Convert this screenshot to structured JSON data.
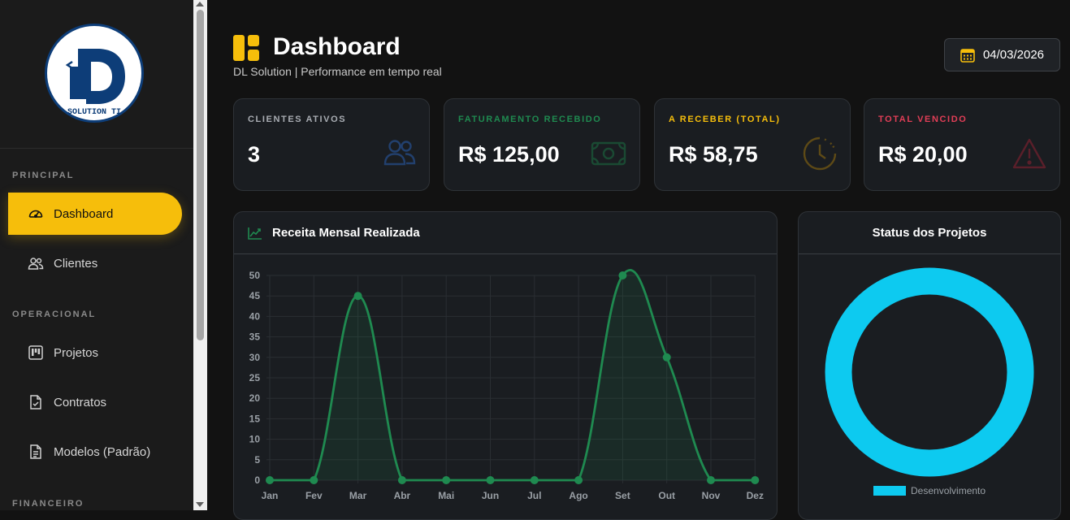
{
  "sidebar": {
    "sections": {
      "principal": "PRINCIPAL",
      "operacional": "OPERACIONAL",
      "financeiro": "FINANCEIRO"
    },
    "logo_text": "SOLUTION TI",
    "items": [
      {
        "label": "Dashboard",
        "icon": "speedometer-icon",
        "active": true
      },
      {
        "label": "Clientes",
        "icon": "users-icon"
      },
      {
        "label": "Projetos",
        "icon": "kanban-icon"
      },
      {
        "label": "Contratos",
        "icon": "file-check-icon"
      },
      {
        "label": "Modelos (Padrão)",
        "icon": "file-text-icon"
      }
    ]
  },
  "header": {
    "title": "Dashboard",
    "subtitle": "DL Solution | Performance em tempo real",
    "date": "04/03/2026"
  },
  "kpis": [
    {
      "label": "CLIENTES ATIVOS",
      "value": "3",
      "color": "#a9adb3",
      "icon": "users-icon"
    },
    {
      "label": "FATURAMENTO RECEBIDO",
      "value": "R$ 125,00",
      "color": "#1f8a50",
      "icon": "cash-icon"
    },
    {
      "label": "A RECEBER (TOTAL)",
      "value": "R$ 58,75",
      "color": "#f6be0b",
      "icon": "clock-icon"
    },
    {
      "label": "TOTAL VENCIDO",
      "value": "R$ 20,00",
      "color": "#e23e57",
      "icon": "warning-icon"
    }
  ],
  "colors": {
    "accent": "#f6be0b",
    "chart_line": "#1f8a50",
    "donut": "#0dcaf0"
  },
  "revenue_panel": {
    "title": "Receita Mensal Realizada"
  },
  "status_panel": {
    "title": "Status dos Projetos",
    "legend": "Desenvolvimento"
  },
  "chart_data": [
    {
      "type": "line",
      "title": "Receita Mensal Realizada",
      "categories": [
        "Jan",
        "Fev",
        "Mar",
        "Abr",
        "Mai",
        "Jun",
        "Jul",
        "Ago",
        "Set",
        "Out",
        "Nov",
        "Dez"
      ],
      "values": [
        0,
        0,
        45,
        0,
        0,
        0,
        0,
        0,
        50,
        30,
        0,
        0
      ],
      "ylim": [
        0,
        50
      ],
      "yticks": [
        0,
        5,
        10,
        15,
        20,
        25,
        30,
        35,
        40,
        45,
        50
      ],
      "grid": true,
      "area_fill": true
    },
    {
      "type": "pie",
      "title": "Status dos Projetos",
      "labels": [
        "Desenvolvimento"
      ],
      "values": [
        1
      ],
      "legend": "bottom"
    }
  ]
}
